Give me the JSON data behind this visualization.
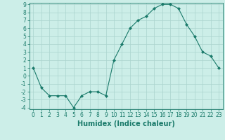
{
  "title": "",
  "xlabel": "Humidex (Indice chaleur)",
  "x": [
    0,
    1,
    2,
    3,
    4,
    5,
    6,
    7,
    8,
    9,
    10,
    11,
    12,
    13,
    14,
    15,
    16,
    17,
    18,
    19,
    20,
    21,
    22,
    23
  ],
  "y": [
    1,
    -1.5,
    -2.5,
    -2.5,
    -2.5,
    -4,
    -2.5,
    -2,
    -2,
    -2.5,
    2,
    4,
    6,
    7,
    7.5,
    8.5,
    9,
    9,
    8.5,
    6.5,
    5,
    3,
    2.5,
    1
  ],
  "ylim": [
    -4,
    9
  ],
  "xlim": [
    -0.5,
    23.5
  ],
  "yticks": [
    -4,
    -3,
    -2,
    -1,
    0,
    1,
    2,
    3,
    4,
    5,
    6,
    7,
    8,
    9
  ],
  "ytick_labels": [
    "-4",
    "-3",
    "-2",
    "-1",
    "0",
    "1",
    "2",
    "3",
    "4",
    "5",
    "6",
    "7",
    "8",
    "9"
  ],
  "xticks": [
    0,
    1,
    2,
    3,
    4,
    5,
    6,
    7,
    8,
    9,
    10,
    11,
    12,
    13,
    14,
    15,
    16,
    17,
    18,
    19,
    20,
    21,
    22,
    23
  ],
  "xtick_labels": [
    "0",
    "1",
    "2",
    "3",
    "4",
    "5",
    "6",
    "7",
    "8",
    "9",
    "10",
    "11",
    "12",
    "13",
    "14",
    "15",
    "16",
    "17",
    "18",
    "19",
    "20",
    "21",
    "22",
    "23"
  ],
  "line_color": "#1a7a6a",
  "marker": "D",
  "marker_size": 2.0,
  "bg_color": "#cceee8",
  "grid_color": "#aad4ce",
  "tick_color": "#1a7a6a",
  "label_color": "#1a7a6a",
  "axis_font_size": 5.5,
  "xlabel_font_size": 7.0
}
